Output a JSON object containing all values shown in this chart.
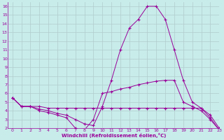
{
  "background_color": "#c8ecea",
  "grid_color": "#b0cccc",
  "line_color": "#990099",
  "xlabel": "Windchill (Refroidissement éolien,°C)",
  "xlim": [
    -0.5,
    23
  ],
  "ylim": [
    2,
    16.5
  ],
  "xticks": [
    0,
    1,
    2,
    3,
    4,
    5,
    6,
    7,
    8,
    9,
    10,
    11,
    12,
    13,
    14,
    15,
    16,
    17,
    18,
    19,
    20,
    21,
    22,
    23
  ],
  "yticks": [
    2,
    3,
    4,
    5,
    6,
    7,
    8,
    9,
    10,
    11,
    12,
    13,
    14,
    15,
    16
  ],
  "series": [
    {
      "x": [
        0,
        1,
        2,
        3,
        4,
        5,
        6,
        7,
        8,
        9,
        10,
        11,
        12,
        13,
        14,
        15,
        16,
        17,
        18,
        19,
        20,
        21,
        22,
        23
      ],
      "y": [
        5.5,
        4.5,
        4.5,
        4.5,
        4.3,
        4.3,
        4.3,
        4.3,
        4.3,
        4.3,
        4.3,
        4.3,
        4.3,
        4.3,
        4.3,
        4.3,
        4.3,
        4.3,
        4.3,
        4.3,
        4.3,
        4.3,
        3.5,
        2.0
      ]
    },
    {
      "x": [
        0,
        1,
        2,
        3,
        4,
        5,
        6,
        7,
        8,
        9,
        10,
        11,
        12,
        13,
        14,
        15,
        16,
        17,
        18,
        19,
        20,
        21,
        22,
        23
      ],
      "y": [
        5.5,
        4.5,
        4.5,
        4.2,
        4.0,
        3.7,
        3.5,
        3.0,
        2.5,
        2.3,
        4.5,
        7.5,
        11.0,
        13.5,
        14.5,
        16.0,
        16.0,
        14.5,
        11.0,
        7.5,
        5.0,
        4.3,
        3.2,
        1.8
      ]
    },
    {
      "x": [
        0,
        1,
        2,
        3,
        4,
        5,
        6,
        7,
        8,
        9,
        10,
        11,
        12,
        13,
        14,
        15,
        16,
        17,
        18,
        19,
        20,
        21,
        22,
        23
      ],
      "y": [
        5.5,
        4.5,
        4.5,
        4.0,
        3.8,
        3.5,
        3.2,
        2.0,
        1.8,
        3.0,
        6.0,
        6.2,
        6.5,
        6.7,
        7.0,
        7.2,
        7.4,
        7.5,
        7.5,
        5.0,
        4.5,
        4.0,
        3.0,
        1.8
      ]
    }
  ]
}
